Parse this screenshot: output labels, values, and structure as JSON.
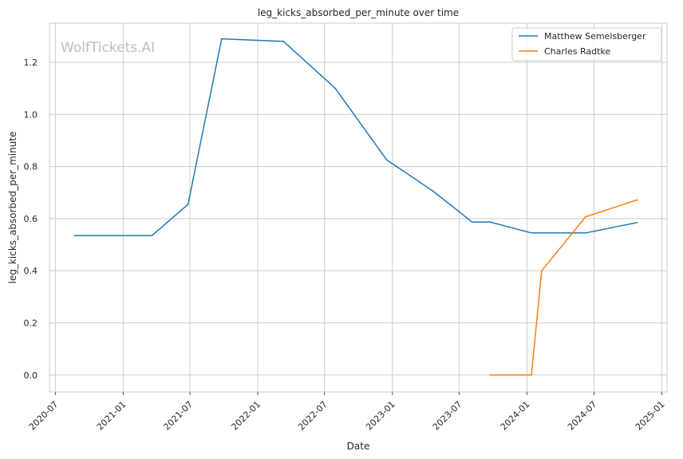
{
  "chart_data": {
    "type": "line",
    "title": "leg_kicks_absorbed_per_minute over time",
    "xlabel": "Date",
    "ylabel": "leg_kicks_absorbed_per_minute",
    "watermark": "WolfTickets.AI",
    "xlim": [
      "2020-06-15",
      "2025-01-15"
    ],
    "ylim": [
      -0.065,
      1.35
    ],
    "x_ticks": [
      "2020-07",
      "2021-01",
      "2021-07",
      "2022-01",
      "2022-07",
      "2023-01",
      "2023-07",
      "2024-01",
      "2024-07",
      "2025-01"
    ],
    "y_ticks": [
      "0.0",
      "0.2",
      "0.4",
      "0.6",
      "0.8",
      "1.0",
      "1.2"
    ],
    "grid": true,
    "legend_position": "top-right",
    "series": [
      {
        "name": "Matthew Semelsberger",
        "color": "#1f77b4",
        "x": [
          "2020-08-22",
          "2021-03-20",
          "2021-06-26",
          "2021-09-25",
          "2022-03-12",
          "2022-07-30",
          "2022-12-17",
          "2023-04-22",
          "2023-08-05",
          "2023-09-23",
          "2024-01-13",
          "2024-06-08",
          "2024-10-26"
        ],
        "y": [
          0.535,
          0.535,
          0.655,
          1.29,
          1.28,
          1.1,
          0.825,
          0.705,
          0.587,
          0.587,
          0.545,
          0.545,
          0.585
        ]
      },
      {
        "name": "Charles Radtke",
        "color": "#ff7f0e",
        "x": [
          "2023-09-23",
          "2024-01-13",
          "2024-02-10",
          "2024-06-08",
          "2024-10-26"
        ],
        "y": [
          0.0,
          0.0,
          0.4,
          0.607,
          0.672
        ]
      }
    ]
  }
}
